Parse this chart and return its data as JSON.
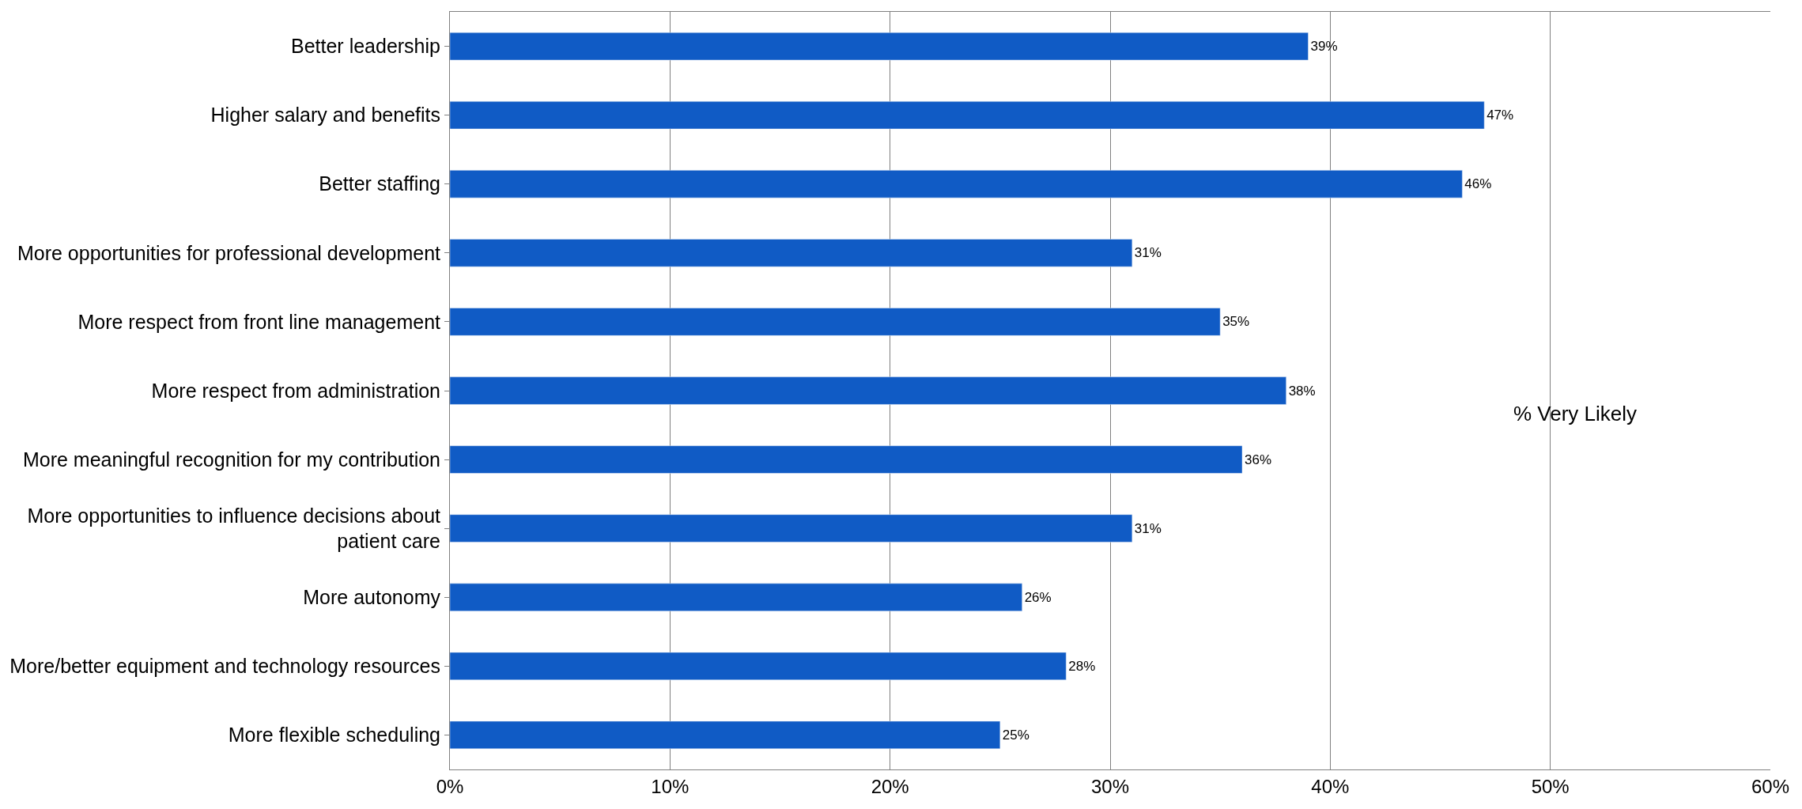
{
  "chart_data": {
    "type": "bar",
    "orientation": "horizontal",
    "categories": [
      "Better leadership",
      "Higher salary and benefits",
      "Better staffing",
      "More opportunities for professional development",
      "More respect from front line management",
      "More respect from administration",
      "More meaningful recognition for my contribution",
      "More opportunities to influence decisions about patient care",
      "More autonomy",
      "More/better equipment and technology resources",
      "More flexible scheduling"
    ],
    "values": [
      39,
      47,
      46,
      31,
      35,
      38,
      36,
      31,
      26,
      28,
      25
    ],
    "value_labels": [
      "39%",
      "47%",
      "46%",
      "31%",
      "35%",
      "38%",
      "36%",
      "31%",
      "26%",
      "28%",
      "25%"
    ],
    "color": "#105bc5",
    "xlim": [
      0,
      60
    ],
    "xticks": [
      {
        "value": 0,
        "label": "0%"
      },
      {
        "value": 10,
        "label": "10%"
      },
      {
        "value": 20,
        "label": "20%"
      },
      {
        "value": 30,
        "label": "30%"
      },
      {
        "value": 40,
        "label": "40%"
      },
      {
        "value": 50,
        "label": "50%"
      },
      {
        "value": 60,
        "label": "60%"
      }
    ],
    "grid": "x",
    "annotations": [
      "% Very Likely"
    ]
  }
}
